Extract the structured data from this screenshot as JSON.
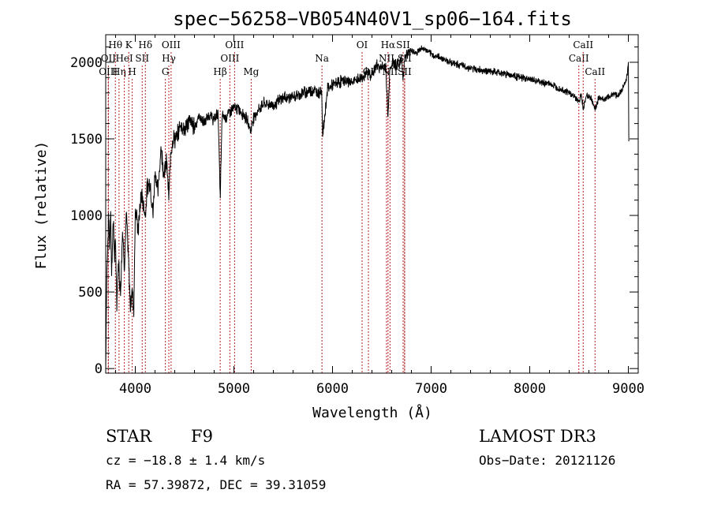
{
  "chart_data": {
    "type": "line",
    "title": "spec−56258−VB054N40V1_sp06−164.fits",
    "xlabel": "Wavelength (Å)",
    "ylabel": "Flux (relative)",
    "xlim": [
      3700,
      9100
    ],
    "ylim": [
      -30,
      2180
    ],
    "x_ticks": [
      4000,
      5000,
      6000,
      7000,
      8000,
      9000
    ],
    "y_ticks": [
      0,
      500,
      1000,
      1500,
      2000
    ],
    "x_tick_labels": [
      "4000",
      "5000",
      "6000",
      "7000",
      "8000",
      "9000"
    ],
    "y_tick_labels": [
      "0",
      "500",
      "1000",
      "1500",
      "2000"
    ],
    "spectrum": {
      "x": [
        3700,
        3705,
        3712,
        3720,
        3730,
        3740,
        3750,
        3760,
        3770,
        3780,
        3790,
        3800,
        3812,
        3830,
        3850,
        3870,
        3890,
        3910,
        3935,
        3950,
        3968,
        3985,
        4000,
        4030,
        4060,
        4080,
        4101,
        4120,
        4150,
        4180,
        4200,
        4230,
        4260,
        4290,
        4320,
        4340,
        4360,
        4380,
        4420,
        4460,
        4500,
        4550,
        4600,
        4650,
        4700,
        4750,
        4800,
        4840,
        4861,
        4880,
        4920,
        4960,
        5007,
        5050,
        5100,
        5150,
        5170,
        5183,
        5200,
        5250,
        5300,
        5400,
        5500,
        5600,
        5700,
        5800,
        5850,
        5890,
        5900,
        5950,
        6000,
        6100,
        6200,
        6300,
        6350,
        6400,
        6450,
        6500,
        6540,
        6563,
        6580,
        6620,
        6660,
        6700,
        6716,
        6731,
        6760,
        6800,
        6850,
        6900,
        6950,
        7000,
        7100,
        7200,
        7300,
        7400,
        7500,
        7600,
        7700,
        7800,
        7900,
        8000,
        8100,
        8200,
        8300,
        8400,
        8450,
        8498,
        8520,
        8542,
        8580,
        8620,
        8662,
        8700,
        8750,
        8800,
        8850,
        8900,
        8950,
        8985,
        9000,
        9005
      ],
      "y": [
        0,
        300,
        650,
        800,
        1000,
        780,
        1050,
        600,
        880,
        950,
        700,
        850,
        420,
        700,
        500,
        900,
        680,
        1000,
        650,
        400,
        520,
        380,
        1050,
        900,
        1150,
        1080,
        1000,
        1180,
        1220,
        1000,
        1300,
        1150,
        1450,
        1280,
        1350,
        1100,
        1420,
        1500,
        1500,
        1600,
        1560,
        1620,
        1580,
        1650,
        1600,
        1660,
        1620,
        1680,
        1100,
        1650,
        1640,
        1680,
        1700,
        1690,
        1660,
        1600,
        1550,
        1600,
        1640,
        1690,
        1730,
        1720,
        1770,
        1770,
        1800,
        1820,
        1800,
        1820,
        1520,
        1830,
        1850,
        1880,
        1870,
        1900,
        1930,
        1920,
        1980,
        1960,
        1980,
        1620,
        1960,
        2000,
        1980,
        2020,
        1900,
        2030,
        2050,
        2080,
        2060,
        2090,
        2080,
        2050,
        2030,
        2000,
        1980,
        1960,
        1950,
        1940,
        1930,
        1920,
        1900,
        1890,
        1870,
        1860,
        1830,
        1800,
        1780,
        1740,
        1790,
        1700,
        1790,
        1770,
        1690,
        1770,
        1760,
        1770,
        1800,
        1780,
        1840,
        1900,
        2000,
        1500
      ]
    },
    "lines": [
      {
        "name": "Hθ",
        "wave": 3798,
        "row": 1
      },
      {
        "name": "OII",
        "wave": 3727,
        "row": 2
      },
      {
        "name": "OIII",
        "wave": 3726,
        "row": 3
      },
      {
        "name": "Hη",
        "wave": 3835,
        "row": 3
      },
      {
        "name": "HeI",
        "wave": 3889,
        "row": 2
      },
      {
        "name": "K",
        "wave": 3934,
        "row": 1
      },
      {
        "name": "H",
        "wave": 3969,
        "row": 3
      },
      {
        "name": "SII",
        "wave": 4070,
        "row": 2
      },
      {
        "name": "Hδ",
        "wave": 4102,
        "row": 1
      },
      {
        "name": "OIII",
        "wave": 4363,
        "row": 1
      },
      {
        "name": "Hγ",
        "wave": 4340,
        "row": 2
      },
      {
        "name": "G",
        "wave": 4305,
        "row": 3
      },
      {
        "name": "Hβ",
        "wave": 4861,
        "row": 3
      },
      {
        "name": "OIII",
        "wave": 4959,
        "row": 2
      },
      {
        "name": "OIII",
        "wave": 5007,
        "row": 1
      },
      {
        "name": "Mg",
        "wave": 5175,
        "row": 3
      },
      {
        "name": "Na",
        "wave": 5893,
        "row": 2
      },
      {
        "name": "OI",
        "wave": 6300,
        "row": 1
      },
      {
        "name": "OI",
        "wave": 6364,
        "row": 3
      },
      {
        "name": "Hα",
        "wave": 6563,
        "row": 1
      },
      {
        "name": "NII",
        "wave": 6548,
        "row": 2
      },
      {
        "name": "NII",
        "wave": 6583,
        "row": 3
      },
      {
        "name": "SII",
        "wave": 6716,
        "row": 1
      },
      {
        "name": "SII",
        "wave": 6731,
        "row": 2
      },
      {
        "name": "SII",
        "wave": 6731,
        "row": 3
      },
      {
        "name": "CaII",
        "wave": 8498,
        "row": 2
      },
      {
        "name": "CaII",
        "wave": 8542,
        "row": 1
      },
      {
        "name": "CaII",
        "wave": 8662,
        "row": 3
      }
    ]
  },
  "info": {
    "object_type": "STAR",
    "subclass": "F9",
    "survey": "LAMOST DR3",
    "redshift": "cz = −18.8 ± 1.4 km/s",
    "obs_date": "Obs−Date: 20121126",
    "coords": "RA =  57.39872, DEC =  39.31059"
  }
}
